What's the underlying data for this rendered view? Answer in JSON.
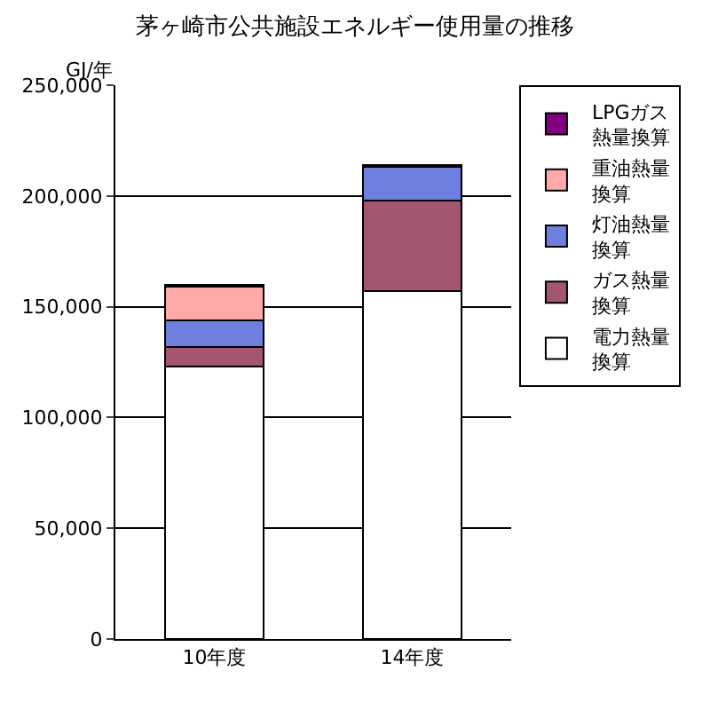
{
  "chart_data": {
    "type": "bar",
    "title": "茅ヶ崎市公共施設エネルギー使用量の推移",
    "ylabel": "GJ/年",
    "categories": [
      "10年度",
      "14年度"
    ],
    "stacked": true,
    "series": [
      {
        "name": "電力熱量換算",
        "color": "#ffffff",
        "values": [
          123000,
          157000
        ]
      },
      {
        "name": "ガス熱量換算",
        "color": "#a3566e",
        "values": [
          9000,
          41000
        ]
      },
      {
        "name": "灯油熱量換算",
        "color": "#6f7fe0",
        "values": [
          12000,
          15000
        ]
      },
      {
        "name": "重油熱量換算",
        "color": "#ffaaaa",
        "values": [
          15000,
          null
        ]
      },
      {
        "name": "LPGガス熱量換算",
        "color": "#800080",
        "values": [
          1000,
          1000
        ]
      }
    ],
    "ylim": [
      0,
      250000
    ],
    "yticks": [
      {
        "value": 0,
        "label": "0"
      },
      {
        "value": 50000,
        "label": "50,000"
      },
      {
        "value": 100000,
        "label": "100,000"
      },
      {
        "value": 150000,
        "label": "150,000"
      },
      {
        "value": 200000,
        "label": "200,000"
      },
      {
        "value": 250000,
        "label": "250,000"
      }
    ],
    "grid": "y",
    "legend": "right"
  }
}
